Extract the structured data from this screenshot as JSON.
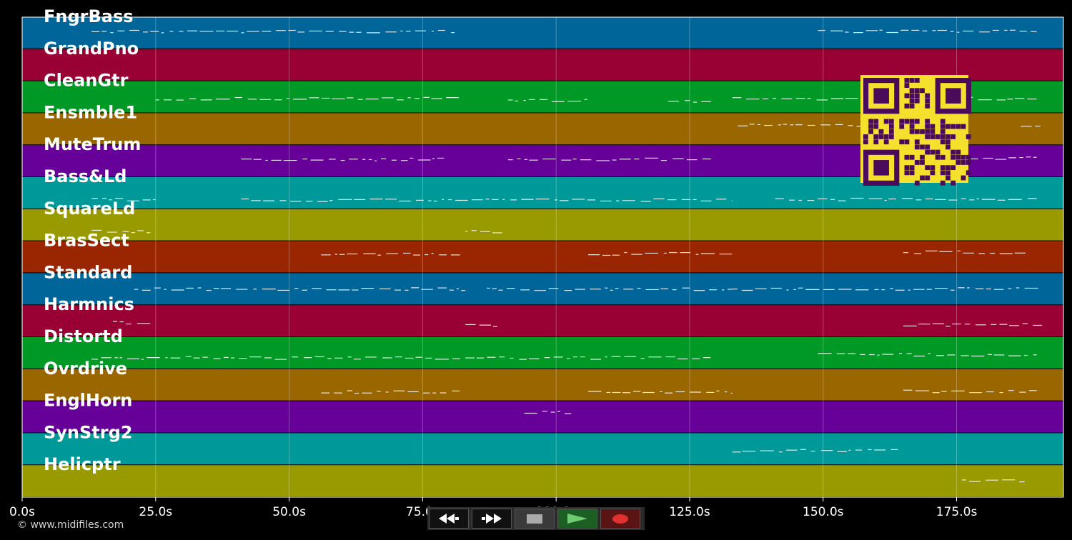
{
  "tracks": [
    {
      "name": "FngrBass",
      "color": "#006699"
    },
    {
      "name": "GrandPno",
      "color": "#990033"
    },
    {
      "name": "CleanGtr",
      "color": "#009926"
    },
    {
      "name": "Ensmble1",
      "color": "#996600"
    },
    {
      "name": "MuteTrum",
      "color": "#660099"
    },
    {
      "name": "Bass&Ld",
      "color": "#009999"
    },
    {
      "name": "SquareLd",
      "color": "#999900"
    },
    {
      "name": "BrasSect",
      "color": "#992600"
    },
    {
      "name": "Standard",
      "color": "#006699"
    },
    {
      "name": "Harmnics",
      "color": "#990033"
    },
    {
      "name": "Distortd",
      "color": "#009926"
    },
    {
      "name": "Ovrdrive",
      "color": "#996600"
    },
    {
      "name": "EnglHorn",
      "color": "#660099"
    },
    {
      "name": "SynStrg2",
      "color": "#009999"
    },
    {
      "name": "Helicptr",
      "color": "#999900"
    }
  ],
  "time_axis": {
    "max_seconds": 195,
    "ticks": [
      0,
      25,
      50,
      75,
      100,
      125,
      150,
      175
    ],
    "tick_labels": [
      "0.0s",
      "25.0s",
      "50.0s",
      "75.0s",
      "100.0s",
      "125.0s",
      "150.0s",
      "175.0s"
    ]
  },
  "note_segments": [
    {
      "track": 0,
      "runs": [
        [
          13,
          81,
          0.45
        ],
        [
          149,
          190,
          0.45
        ]
      ]
    },
    {
      "track": 2,
      "runs": [
        [
          25,
          82,
          0.55
        ],
        [
          91,
          106,
          0.6
        ],
        [
          121,
          129,
          0.62
        ],
        [
          133,
          190,
          0.55
        ]
      ]
    },
    {
      "track": 3,
      "runs": [
        [
          134,
          165,
          0.38
        ],
        [
          187,
          191,
          0.45
        ]
      ]
    },
    {
      "track": 4,
      "runs": [
        [
          41,
          79,
          0.45
        ],
        [
          91,
          129,
          0.45
        ],
        [
          177,
          190,
          0.4
        ]
      ]
    },
    {
      "track": 5,
      "runs": [
        [
          13,
          25,
          0.7
        ],
        [
          41,
          133,
          0.72
        ],
        [
          141,
          190,
          0.7
        ]
      ]
    },
    {
      "track": 6,
      "runs": [
        [
          13,
          24,
          0.7
        ],
        [
          83,
          90,
          0.7
        ]
      ]
    },
    {
      "track": 7,
      "runs": [
        [
          56,
          82,
          0.4
        ],
        [
          106,
          133,
          0.4
        ],
        [
          165,
          188,
          0.35
        ]
      ]
    },
    {
      "track": 8,
      "runs": [
        [
          21,
          83,
          0.5
        ],
        [
          87,
          133,
          0.5
        ],
        [
          133,
          191,
          0.5
        ]
      ]
    },
    {
      "track": 9,
      "runs": [
        [
          17,
          24,
          0.55
        ],
        [
          83,
          89,
          0.65
        ],
        [
          165,
          191,
          0.62
        ]
      ]
    },
    {
      "track": 10,
      "runs": [
        [
          13,
          82,
          0.65
        ],
        [
          83,
          129,
          0.65
        ],
        [
          149,
          190,
          0.55
        ]
      ]
    },
    {
      "track": 11,
      "runs": [
        [
          56,
          82,
          0.72
        ],
        [
          106,
          133,
          0.72
        ],
        [
          165,
          190,
          0.7
        ]
      ]
    },
    {
      "track": 12,
      "runs": [
        [
          94,
          103,
          0.35
        ]
      ]
    },
    {
      "track": 13,
      "runs": [
        [
          133,
          164,
          0.55
        ]
      ]
    },
    {
      "track": 14,
      "runs": [
        [
          176,
          188,
          0.5
        ]
      ]
    }
  ],
  "overlay": {
    "qr_icon": "qr-code-icon",
    "qr_fg": "#4a0c5a",
    "qr_bg": "#f5e02e"
  },
  "copyright": "© www.midifiles.com",
  "transport": {
    "rewind_icon": "rewind-icon",
    "forward_icon": "fast-forward-icon",
    "stop_icon": "stop-icon",
    "play_icon": "play-icon",
    "record_icon": "record-icon"
  }
}
